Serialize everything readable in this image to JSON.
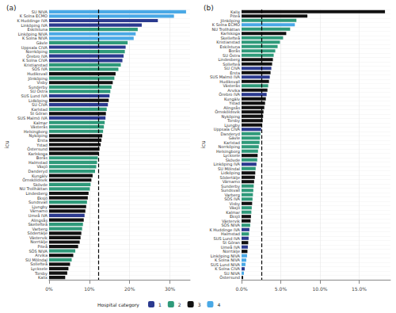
{
  "chart_data": [
    {
      "type": "bar",
      "title": "(a)",
      "orientation": "horizontal",
      "stacked": true,
      "grid": true,
      "xlabel": "",
      "ylabel": "icu",
      "legend": "bottom",
      "legend_title": "Hospital category",
      "groups": [
        {
          "name": "1",
          "color": "#2b3a8f"
        },
        {
          "name": "2",
          "color": "#2f9a7a"
        },
        {
          "name": "3",
          "color": "#111111"
        },
        {
          "name": "4",
          "color": "#4aa9e6"
        }
      ],
      "categories": [
        "SU NIVA",
        "K Solna ECMO",
        "K Huddinge IVA",
        "Linköping IVA",
        "Eskilstuna",
        "Linköping NIVA",
        "K Solna NIVA",
        "Gävle",
        "Uppsala CIVA",
        "Norrköping",
        "Örebro IVA",
        "K Solna CIVA",
        "Kristianstad",
        "SÖS IVA",
        "Hudiksvall",
        "Jönköping",
        "Visby",
        "Sunderby",
        "SU Östra",
        "SUS Lund IVA",
        "Lidköping",
        "SU CIVA",
        "Karlstad",
        "St Göran",
        "SUS Malmö IVA",
        "Kalmar",
        "Västerås",
        "Helsingborg",
        "Nyköping",
        "Ersta",
        "Ystad",
        "Östersund",
        "Karlskoga",
        "Borås",
        "Halmstad",
        "Växjö",
        "Danderyd",
        "Kungälv",
        "Örnsköldsvik",
        "Skövde",
        "NU Trollhättan",
        "Lindesberg",
        "Eksjö",
        "Sundsvall",
        "Ljungby",
        "Värnamo",
        "Umeå IVA",
        "Alingsås",
        "Skellefteå",
        "Varberg",
        "Södertälje",
        "Västervik",
        "Norrtälje",
        "Piteå",
        "SÖS NIVA",
        "Arvika",
        "SU Mölndal",
        "Sollefteå",
        "Lycksele",
        "Torsby",
        "Kalix"
      ],
      "values": [
        34,
        31,
        27,
        23,
        22,
        21.5,
        21,
        19.5,
        19,
        18.8,
        18.5,
        18.2,
        17.8,
        17.2,
        16.5,
        16.2,
        15.8,
        15.5,
        15.2,
        15,
        14.8,
        14.6,
        14.3,
        14.1,
        14,
        13.8,
        13.6,
        13.4,
        13.2,
        13,
        12.8,
        12.5,
        12.3,
        12.1,
        11.9,
        11.7,
        11.4,
        10.8,
        10.5,
        10.3,
        10.1,
        9.8,
        9.6,
        9.4,
        9.2,
        9,
        8.8,
        8.6,
        8.4,
        8.2,
        8,
        7.8,
        7.6,
        7.2,
        6.5,
        6,
        5.6,
        5.2,
        4.8,
        4.5,
        4
      ],
      "group": [
        "4",
        "4",
        "1",
        "1",
        "2",
        "4",
        "4",
        "2",
        "1",
        "2",
        "1",
        "1",
        "2",
        "2",
        "3",
        "2",
        "3",
        "2",
        "2",
        "1",
        "3",
        "1",
        "2",
        "3",
        "1",
        "2",
        "2",
        "2",
        "3",
        "3",
        "3",
        "3",
        "3",
        "2",
        "2",
        "2",
        "2",
        "3",
        "3",
        "2",
        "2",
        "3",
        "3",
        "2",
        "3",
        "3",
        "1",
        "3",
        "2",
        "2",
        "3",
        "3",
        "3",
        "3",
        "2",
        "3",
        "2",
        "3",
        "3",
        "3",
        "3"
      ],
      "reference_line": 12.3,
      "xlim": [
        0,
        35
      ],
      "xticks": [
        {
          "value": 0,
          "label": "0%"
        },
        {
          "value": 10,
          "label": "10%"
        },
        {
          "value": 20,
          "label": "20%"
        },
        {
          "value": 30,
          "label": "30%"
        }
      ]
    },
    {
      "type": "bar",
      "title": "(b)",
      "orientation": "horizontal",
      "stacked": true,
      "grid": true,
      "xlabel": "",
      "ylabel": "icu",
      "legend": "bottom",
      "legend_title": "Hospital category",
      "groups": [
        {
          "name": "1",
          "color": "#2b3a8f"
        },
        {
          "name": "2",
          "color": "#2f9a7a"
        },
        {
          "name": "3",
          "color": "#111111"
        },
        {
          "name": "4",
          "color": "#4aa9e6"
        }
      ],
      "categories": [
        "Kalix",
        "Piteå",
        "Jönköping",
        "K Solna ECMO",
        "NU Trollhättan",
        "Karlskoga",
        "Skellefteå",
        "Kristianstad",
        "Eskilstuna",
        "Borås",
        "SU Östra",
        "Lindesberg",
        "Sollefteå",
        "SU CIVA",
        "Ersta",
        "SUS Malmö IVA",
        "Hudiksvall",
        "Västerås",
        "Arvika",
        "Örebro IVA",
        "Kungälv",
        "Ystad",
        "Alingsås",
        "Örnsköldsvik",
        "Nyköping",
        "Torsby",
        "Ljungby",
        "Uppsala CIVA",
        "Danderyd",
        "Gävle",
        "Karlstad",
        "Norrköping",
        "Helsingborg",
        "Lycksele",
        "Skövde",
        "Linköping IVA",
        "SU Mölndal",
        "Lidköping",
        "Södertälje",
        "Värnamo",
        "Sunderby",
        "Sundsvall",
        "Varberg",
        "SÖS IVA",
        "Visby",
        "Växjö",
        "Kalmar",
        "Eksjö",
        "Västervik",
        "SÖS NIVA",
        "K Huddinge IVA",
        "Halmstad",
        "SUS Lund IVA",
        "St Göran",
        "Umeå IVA",
        "Norrtälje",
        "Linköping NIVA",
        "K Solna NIVA",
        "SUS Lund NIVA",
        "K Solna CIVA",
        "SU NIVA",
        "Östersund"
      ],
      "values": [
        18.3,
        8.4,
        7,
        6.8,
        6.2,
        5.7,
        5.3,
        4.9,
        4.6,
        4.3,
        4.1,
        4,
        3.9,
        3.8,
        3.7,
        3.6,
        3.5,
        3.4,
        3.3,
        3.2,
        3.1,
        3,
        2.9,
        2.8,
        2.75,
        2.7,
        2.6,
        2.5,
        2.4,
        2.35,
        2.3,
        2.2,
        2.1,
        2.05,
        2,
        1.9,
        1.8,
        1.75,
        1.7,
        1.6,
        1.55,
        1.5,
        1.45,
        1.4,
        1.35,
        1.3,
        1.25,
        1.2,
        1.15,
        1.1,
        1,
        0.95,
        0.9,
        0.85,
        0.8,
        0.75,
        0.7,
        0.6,
        0.5,
        0.4,
        0.3,
        0.2
      ],
      "group": [
        "3",
        "3",
        "2",
        "4",
        "2",
        "3",
        "2",
        "2",
        "2",
        "2",
        "2",
        "3",
        "3",
        "1",
        "3",
        "1",
        "3",
        "2",
        "3",
        "1",
        "3",
        "3",
        "3",
        "3",
        "3",
        "3",
        "3",
        "1",
        "2",
        "2",
        "2",
        "2",
        "2",
        "3",
        "2",
        "1",
        "2",
        "3",
        "3",
        "3",
        "2",
        "2",
        "2",
        "2",
        "3",
        "2",
        "2",
        "3",
        "3",
        "2",
        "1",
        "2",
        "1",
        "3",
        "1",
        "3",
        "4",
        "4",
        "4",
        "1",
        "4",
        "3"
      ],
      "reference_line": 2.6,
      "xlim": [
        0,
        19
      ],
      "xticks": [
        {
          "value": 0,
          "label": "0.0%"
        },
        {
          "value": 5,
          "label": "5.0%"
        },
        {
          "value": 10,
          "label": "10.0%"
        },
        {
          "value": 15,
          "label": "15.0%"
        }
      ]
    }
  ]
}
